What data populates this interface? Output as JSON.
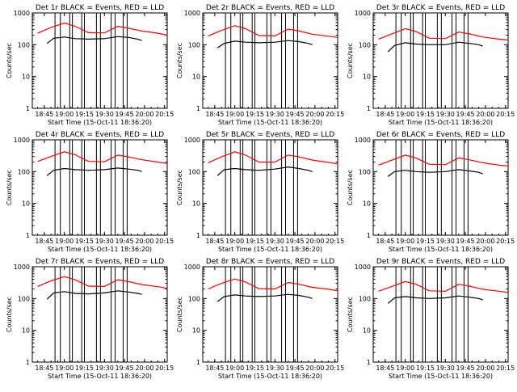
{
  "chart_data": [
    {
      "type": "line",
      "title": "Det 1r BLACK = Events, RED = LLD",
      "xlabel": "Start Time (15-Oct-11 18:36:20)",
      "ylabel": "Counts/sec",
      "yscale": "log",
      "ylim": [
        1,
        1000
      ],
      "xlim": [
        "18:36",
        "20:17"
      ],
      "xticks": [
        "18:45",
        "19:00",
        "19:15",
        "19:30",
        "19:45",
        "20:00",
        "20:15"
      ],
      "yticks": [
        "1",
        "10",
        "100",
        "1000"
      ],
      "series": [
        {
          "name": "Events",
          "color": "#000000",
          "x": [
            "18:47",
            "18:52",
            "19:00",
            "19:08",
            "19:18",
            "19:30",
            "19:40",
            "19:48",
            "19:55",
            "19:58"
          ],
          "y": [
            110,
            160,
            175,
            155,
            150,
            155,
            180,
            170,
            150,
            135
          ]
        },
        {
          "name": "LLD",
          "color": "#ff0000",
          "x": [
            "18:40",
            "18:50",
            "19:00",
            "19:08",
            "19:18",
            "19:30",
            "19:40",
            "19:48",
            "19:58",
            "20:10",
            "20:17"
          ],
          "y": [
            230,
            350,
            480,
            380,
            240,
            235,
            380,
            330,
            270,
            230,
            200
          ]
        }
      ],
      "gaps": [
        "18:53",
        "18:57",
        "19:04",
        "19:06",
        "19:13",
        "19:15",
        "19:24",
        "19:27",
        "19:35",
        "19:38",
        "19:44",
        "19:47"
      ]
    },
    {
      "type": "line",
      "title": "Det 2r BLACK = Events, RED = LLD",
      "xlabel": "Start Time (15-Oct-11 18:36:20)",
      "ylabel": "Counts/sec",
      "yscale": "log",
      "ylim": [
        1,
        1000
      ],
      "xlim": [
        "18:36",
        "20:17"
      ],
      "xticks": [
        "18:45",
        "19:00",
        "19:15",
        "19:30",
        "19:45",
        "20:00",
        "20:15"
      ],
      "yticks": [
        "1",
        "10",
        "100",
        "1000"
      ],
      "series": [
        {
          "name": "Events",
          "color": "#000000",
          "x": [
            "18:47",
            "18:52",
            "19:00",
            "19:08",
            "19:18",
            "19:30",
            "19:40",
            "19:48",
            "19:55",
            "19:58"
          ],
          "y": [
            80,
            110,
            130,
            120,
            115,
            120,
            135,
            125,
            110,
            100
          ]
        },
        {
          "name": "LLD",
          "color": "#ff0000",
          "x": [
            "18:40",
            "18:50",
            "19:00",
            "19:08",
            "19:18",
            "19:30",
            "19:40",
            "19:48",
            "19:58",
            "20:10",
            "20:17"
          ],
          "y": [
            190,
            280,
            400,
            320,
            195,
            190,
            310,
            270,
            215,
            185,
            170
          ]
        }
      ],
      "gaps": [
        "18:53",
        "18:57",
        "19:04",
        "19:06",
        "19:13",
        "19:15",
        "19:24",
        "19:27",
        "19:35",
        "19:38",
        "19:44",
        "19:47"
      ]
    },
    {
      "type": "line",
      "title": "Det 3r BLACK = Events, RED = LLD",
      "xlabel": "Start Time (15-Oct-11 18:36:20)",
      "ylabel": "Counts/sec",
      "yscale": "log",
      "ylim": [
        1,
        1000
      ],
      "xlim": [
        "18:36",
        "20:17"
      ],
      "xticks": [
        "18:45",
        "19:00",
        "19:15",
        "19:30",
        "19:45",
        "20:00",
        "20:15"
      ],
      "yticks": [
        "1",
        "10",
        "100",
        "1000"
      ],
      "series": [
        {
          "name": "Events",
          "color": "#000000",
          "x": [
            "18:47",
            "18:52",
            "19:00",
            "19:08",
            "19:18",
            "19:30",
            "19:40",
            "19:48",
            "19:55",
            "19:58"
          ],
          "y": [
            60,
            95,
            115,
            105,
            100,
            100,
            120,
            110,
            100,
            90
          ]
        },
        {
          "name": "LLD",
          "color": "#ff0000",
          "x": [
            "18:40",
            "18:50",
            "19:00",
            "19:08",
            "19:18",
            "19:30",
            "19:40",
            "19:48",
            "19:58",
            "20:10",
            "20:17"
          ],
          "y": [
            150,
            220,
            320,
            260,
            160,
            155,
            250,
            220,
            175,
            150,
            140
          ]
        }
      ],
      "gaps": [
        "18:53",
        "18:57",
        "19:04",
        "19:06",
        "19:13",
        "19:15",
        "19:24",
        "19:27",
        "19:35",
        "19:38",
        "19:44",
        "19:47"
      ]
    },
    {
      "type": "line",
      "title": "Det 4r BLACK = Events, RED = LLD",
      "xlabel": "Start Time (15-Oct-11 18:36:20)",
      "ylabel": "Counts/sec",
      "yscale": "log",
      "ylim": [
        1,
        1000
      ],
      "xlim": [
        "18:36",
        "20:17"
      ],
      "xticks": [
        "18:45",
        "19:00",
        "19:15",
        "19:30",
        "19:45",
        "20:00",
        "20:15"
      ],
      "yticks": [
        "1",
        "10",
        "100",
        "1000"
      ],
      "series": [
        {
          "name": "Events",
          "color": "#000000",
          "x": [
            "18:47",
            "18:52",
            "19:00",
            "19:08",
            "19:18",
            "19:30",
            "19:40",
            "19:48",
            "19:55",
            "19:58"
          ],
          "y": [
            75,
            110,
            125,
            115,
            110,
            115,
            130,
            120,
            110,
            100
          ]
        },
        {
          "name": "LLD",
          "color": "#ff0000",
          "x": [
            "18:40",
            "18:50",
            "19:00",
            "19:08",
            "19:18",
            "19:30",
            "19:40",
            "19:48",
            "19:58",
            "20:10",
            "20:17"
          ],
          "y": [
            210,
            300,
            420,
            340,
            210,
            205,
            330,
            290,
            235,
            200,
            180
          ]
        }
      ],
      "gaps": [
        "18:53",
        "18:57",
        "19:04",
        "19:06",
        "19:13",
        "19:15",
        "19:24",
        "19:27",
        "19:35",
        "19:38",
        "19:44",
        "19:47"
      ]
    },
    {
      "type": "line",
      "title": "Det 5r BLACK = Events, RED = LLD",
      "xlabel": "Start Time (15-Oct-11 18:36:20)",
      "ylabel": "Counts/sec",
      "yscale": "log",
      "ylim": [
        1,
        1000
      ],
      "xlim": [
        "18:36",
        "20:17"
      ],
      "xticks": [
        "18:45",
        "19:00",
        "19:15",
        "19:30",
        "19:45",
        "20:00",
        "20:15"
      ],
      "yticks": [
        "1",
        "10",
        "100",
        "1000"
      ],
      "series": [
        {
          "name": "Events",
          "color": "#000000",
          "x": [
            "18:47",
            "18:52",
            "19:00",
            "19:08",
            "19:18",
            "19:30",
            "19:40",
            "19:48",
            "19:55",
            "19:58"
          ],
          "y": [
            75,
            115,
            125,
            115,
            110,
            120,
            140,
            125,
            110,
            100
          ]
        },
        {
          "name": "LLD",
          "color": "#ff0000",
          "x": [
            "18:40",
            "18:50",
            "19:00",
            "19:08",
            "19:18",
            "19:30",
            "19:40",
            "19:48",
            "19:58",
            "20:10",
            "20:17"
          ],
          "y": [
            190,
            290,
            420,
            330,
            200,
            200,
            330,
            290,
            230,
            195,
            175
          ]
        }
      ],
      "gaps": [
        "18:53",
        "18:57",
        "19:04",
        "19:06",
        "19:13",
        "19:15",
        "19:24",
        "19:27",
        "19:35",
        "19:38",
        "19:44",
        "19:47"
      ]
    },
    {
      "type": "line",
      "title": "Det 6r BLACK = Events, RED = LLD",
      "xlabel": "Start Time (15-Oct-11 18:36:20)",
      "ylabel": "Counts/sec",
      "yscale": "log",
      "ylim": [
        1,
        1000
      ],
      "xlim": [
        "18:36",
        "20:17"
      ],
      "xticks": [
        "18:45",
        "19:00",
        "19:15",
        "19:30",
        "19:45",
        "20:00",
        "20:15"
      ],
      "yticks": [
        "1",
        "10",
        "100",
        "1000"
      ],
      "series": [
        {
          "name": "Events",
          "color": "#000000",
          "x": [
            "18:47",
            "18:52",
            "19:00",
            "19:08",
            "19:18",
            "19:30",
            "19:40",
            "19:48",
            "19:55",
            "19:58"
          ],
          "y": [
            70,
            100,
            110,
            100,
            95,
            100,
            115,
            105,
            95,
            85
          ]
        },
        {
          "name": "LLD",
          "color": "#ff0000",
          "x": [
            "18:40",
            "18:50",
            "19:00",
            "19:08",
            "19:18",
            "19:30",
            "19:40",
            "19:48",
            "19:58",
            "20:10",
            "20:17"
          ],
          "y": [
            160,
            230,
            330,
            270,
            170,
            165,
            270,
            235,
            190,
            160,
            150
          ]
        }
      ],
      "gaps": [
        "18:53",
        "18:57",
        "19:04",
        "19:06",
        "19:13",
        "19:15",
        "19:24",
        "19:27",
        "19:35",
        "19:38",
        "19:44",
        "19:47"
      ]
    },
    {
      "type": "line",
      "title": "Det 7r BLACK = Events, RED = LLD",
      "xlabel": "Start Time (15-Oct-11 18:36:20)",
      "ylabel": "Counts/sec",
      "yscale": "log",
      "ylim": [
        1,
        1000
      ],
      "xlim": [
        "18:36",
        "20:17"
      ],
      "xticks": [
        "18:45",
        "19:00",
        "19:15",
        "19:30",
        "19:45",
        "20:00",
        "20:15"
      ],
      "yticks": [
        "1",
        "10",
        "100",
        "1000"
      ],
      "series": [
        {
          "name": "Events",
          "color": "#000000",
          "x": [
            "18:47",
            "18:52",
            "19:00",
            "19:08",
            "19:18",
            "19:30",
            "19:40",
            "19:48",
            "19:55",
            "19:58"
          ],
          "y": [
            95,
            150,
            165,
            145,
            140,
            150,
            175,
            160,
            145,
            135
          ]
        },
        {
          "name": "LLD",
          "color": "#ff0000",
          "x": [
            "18:40",
            "18:50",
            "19:00",
            "19:08",
            "19:18",
            "19:30",
            "19:40",
            "19:48",
            "19:58",
            "20:10",
            "20:17"
          ],
          "y": [
            240,
            360,
            490,
            390,
            245,
            240,
            390,
            340,
            275,
            235,
            210
          ]
        }
      ],
      "gaps": [
        "18:53",
        "18:57",
        "19:04",
        "19:06",
        "19:13",
        "19:15",
        "19:24",
        "19:27",
        "19:35",
        "19:38",
        "19:44",
        "19:47"
      ]
    },
    {
      "type": "line",
      "title": "Det 8r BLACK = Events, RED = LLD",
      "xlabel": "Start Time (15-Oct-11 18:36:20)",
      "ylabel": "Counts/sec",
      "yscale": "log",
      "ylim": [
        1,
        1000
      ],
      "xlim": [
        "18:36",
        "20:17"
      ],
      "xticks": [
        "18:45",
        "19:00",
        "19:15",
        "19:30",
        "19:45",
        "20:00",
        "20:15"
      ],
      "yticks": [
        "1",
        "10",
        "100",
        "1000"
      ],
      "series": [
        {
          "name": "Events",
          "color": "#000000",
          "x": [
            "18:47",
            "18:52",
            "19:00",
            "19:08",
            "19:18",
            "19:30",
            "19:40",
            "19:48",
            "19:55",
            "19:58"
          ],
          "y": [
            80,
            115,
            130,
            120,
            115,
            120,
            135,
            125,
            110,
            100
          ]
        },
        {
          "name": "LLD",
          "color": "#ff0000",
          "x": [
            "18:40",
            "18:50",
            "19:00",
            "19:08",
            "19:18",
            "19:30",
            "19:40",
            "19:48",
            "19:58",
            "20:10",
            "20:17"
          ],
          "y": [
            200,
            300,
            410,
            330,
            205,
            200,
            320,
            280,
            225,
            195,
            175
          ]
        }
      ],
      "gaps": [
        "18:53",
        "18:57",
        "19:04",
        "19:06",
        "19:13",
        "19:15",
        "19:24",
        "19:27",
        "19:35",
        "19:38",
        "19:44",
        "19:47"
      ]
    },
    {
      "type": "line",
      "title": "Det 9r BLACK = Events, RED = LLD",
      "xlabel": "Start Time (15-Oct-11 18:36:20)",
      "ylabel": "Counts/sec",
      "yscale": "log",
      "ylim": [
        1,
        1000
      ],
      "xlim": [
        "18:36",
        "20:17"
      ],
      "xticks": [
        "18:45",
        "19:00",
        "19:15",
        "19:30",
        "19:45",
        "20:00",
        "20:15"
      ],
      "yticks": [
        "1",
        "10",
        "100",
        "1000"
      ],
      "series": [
        {
          "name": "Events",
          "color": "#000000",
          "x": [
            "18:47",
            "18:52",
            "19:00",
            "19:08",
            "19:18",
            "19:30",
            "19:40",
            "19:48",
            "19:55",
            "19:58"
          ],
          "y": [
            70,
            105,
            115,
            105,
            100,
            105,
            120,
            110,
            100,
            90
          ]
        },
        {
          "name": "LLD",
          "color": "#ff0000",
          "x": [
            "18:40",
            "18:50",
            "19:00",
            "19:08",
            "19:18",
            "19:30",
            "19:40",
            "19:48",
            "19:58",
            "20:10",
            "20:17"
          ],
          "y": [
            170,
            240,
            340,
            280,
            175,
            170,
            280,
            245,
            195,
            170,
            155
          ]
        }
      ],
      "gaps": [
        "18:53",
        "18:57",
        "19:04",
        "19:06",
        "19:13",
        "19:15",
        "19:24",
        "19:27",
        "19:35",
        "19:38",
        "19:44",
        "19:47"
      ]
    }
  ]
}
